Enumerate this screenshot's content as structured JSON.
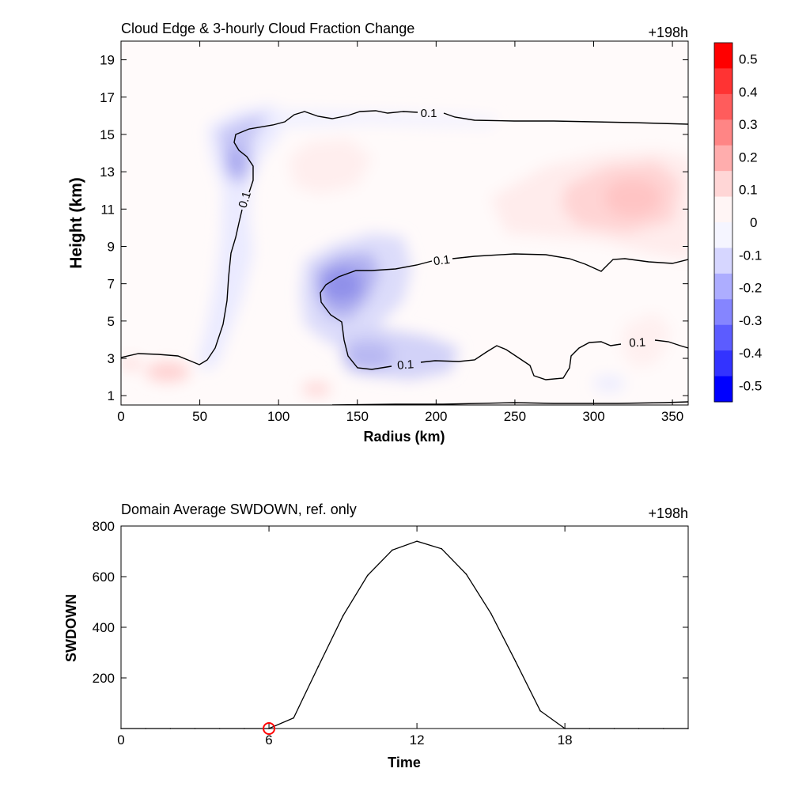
{
  "chart_data": [
    {
      "type": "heatmap",
      "title": "Cloud Edge & 3-hourly Cloud Fraction Change",
      "annotation": "+198h",
      "xlabel": "Radius (km)",
      "ylabel": "Height (km)",
      "xlim": [
        0,
        360
      ],
      "ylim": [
        0.5,
        20
      ],
      "xticks": [
        0,
        50,
        100,
        150,
        200,
        250,
        300,
        350
      ],
      "yticks": [
        1,
        3,
        5,
        7,
        9,
        11,
        13,
        15,
        17,
        19
      ],
      "colorbar": {
        "range": [
          -0.55,
          0.55
        ],
        "ticks": [
          "0.5",
          "0.4",
          "0.3",
          "0.2",
          "0.1",
          "0",
          "-0.1",
          "-0.2",
          "-0.3",
          "-0.4",
          "-0.5"
        ],
        "colors": [
          "#ff0000",
          "#ff3333",
          "#ff5c5c",
          "#ff8585",
          "#ffadad",
          "#ffd6d6",
          "#fff5f5",
          "#f5f5ff",
          "#d6d6ff",
          "#adadff",
          "#8585ff",
          "#5c5cff",
          "#3333ff",
          "#0000ff"
        ]
      },
      "contour_level": "0.1",
      "contour_labels": [
        "0.1",
        "0.1",
        "0.1",
        "0.1",
        "0.1"
      ],
      "features": [
        {
          "x": 140,
          "y": 7.0,
          "value": -0.25
        },
        {
          "x": 145,
          "y": 2.8,
          "value": -0.15
        },
        {
          "x": 65,
          "y": 13.5,
          "value": -0.2
        },
        {
          "x": 325,
          "y": 11.5,
          "value": 0.15
        },
        {
          "x": 30,
          "y": 2.3,
          "value": 0.15
        }
      ]
    },
    {
      "type": "line",
      "title": "Domain Average SWDOWN, ref. only",
      "annotation": "+198h",
      "xlabel": "Time",
      "ylabel": "SWDOWN",
      "xlim": [
        0,
        23
      ],
      "ylim": [
        0,
        800
      ],
      "xticks": [
        0,
        6,
        12,
        18
      ],
      "yticks": [
        200,
        400,
        600,
        800
      ],
      "x": [
        0,
        1,
        2,
        3,
        4,
        5,
        6,
        7,
        8,
        9,
        10,
        11,
        12,
        13,
        14,
        15,
        16,
        17,
        18,
        19,
        20,
        21,
        22,
        23
      ],
      "values": [
        0,
        0,
        0,
        0,
        0,
        0,
        0,
        42,
        245,
        445,
        605,
        705,
        740,
        710,
        610,
        455,
        265,
        70,
        0,
        0,
        0,
        0,
        0,
        0
      ],
      "marker": {
        "x": 6,
        "y": 0,
        "color": "#ff0000"
      }
    }
  ]
}
